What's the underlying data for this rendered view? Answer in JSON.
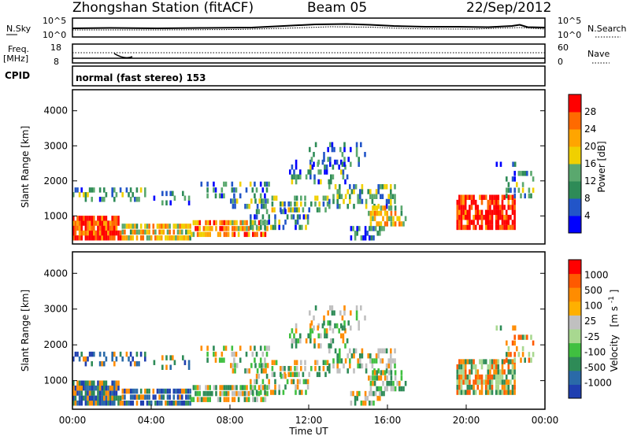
{
  "header": {
    "station": "Zhongshan Station (fitACF)",
    "beam": "Beam 05",
    "date": "22/Sep/2012"
  },
  "noise_panel": {
    "left_label": "N.Sky",
    "right_label": "N.Search",
    "left_ticks": [
      "10^5",
      "10^0"
    ],
    "right_ticks": [
      "10^5",
      "10^0"
    ],
    "scale": "log"
  },
  "freq_panel": {
    "left_label_line1": "Freq.",
    "left_label_line2": "[MHz]",
    "left_ticks": [
      "18",
      "8"
    ],
    "right_label": "Nave",
    "right_ticks": [
      "60",
      "0"
    ]
  },
  "cpid": {
    "label": "CPID",
    "value": "normal (fast stereo) 153"
  },
  "colors": {
    "power_scale": [
      "#0000ff",
      "#2255c8",
      "#2e8b57",
      "#5aa86e",
      "#f0d000",
      "#ffa500",
      "#ff6a00",
      "#ff0000"
    ],
    "velocity_scale": [
      "#ff0000",
      "#ff5a00",
      "#ff8c00",
      "#ffb000",
      "#c0c0c0",
      "#a8d890",
      "#40c040",
      "#2e8b57",
      "#2a6aa8",
      "#1f3fb0"
    ]
  },
  "chart_data": [
    {
      "type": "heatmap",
      "name": "power-panel",
      "ylabel": "Slant Range [km]",
      "yticks": [
        "1000",
        "2000",
        "3000",
        "4000"
      ],
      "ylim": [
        200,
        4600
      ],
      "xlim": [
        "00:00",
        "24:00"
      ],
      "colorbar_label": "Power [dB]",
      "colorbar_ticks": [
        "4",
        "8",
        "12",
        "16",
        "20",
        "24",
        "28"
      ],
      "colorbar_range": [
        0,
        30
      ]
    },
    {
      "type": "heatmap",
      "name": "velocity-panel",
      "ylabel": "Slant Range [km]",
      "yticks": [
        "1000",
        "2000",
        "3000",
        "4000"
      ],
      "ylim": [
        200,
        4600
      ],
      "xlim": [
        "00:00",
        "24:00"
      ],
      "xticks": [
        "00:00",
        "04:00",
        "08:00",
        "12:00",
        "16:00",
        "20:00",
        "00:00"
      ],
      "xlabel": "Time UT",
      "colorbar_label_main": "Velocity",
      "colorbar_label_units": "[m s",
      "colorbar_label_sup": "-1",
      "colorbar_label_close": "]",
      "colorbar_ticks": [
        "1000",
        "500",
        "100",
        "25",
        "-25",
        "-100",
        "-500",
        "-1000"
      ]
    }
  ]
}
